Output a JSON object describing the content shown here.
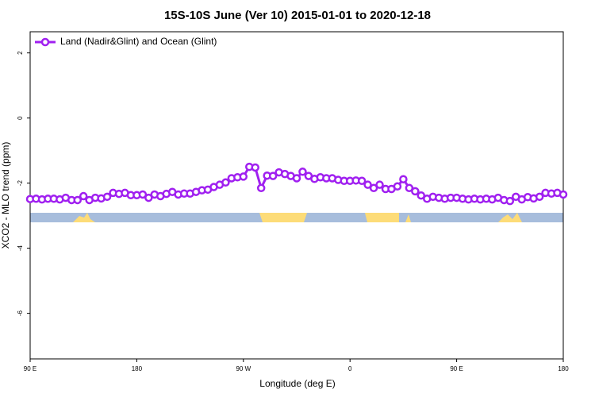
{
  "chart_data": {
    "type": "line",
    "title": "15S-10S June (Ver 10)   2015-01-01 to 2020-12-18",
    "x_label": "Longitude (deg E)",
    "y_label": "XCO2 - MLO trend (ppm)",
    "x": [
      90,
      95,
      100,
      105,
      110,
      115,
      120,
      125,
      130,
      135,
      140,
      145,
      150,
      155,
      160,
      165,
      170,
      175,
      180,
      185,
      190,
      195,
      200,
      205,
      210,
      215,
      220,
      225,
      230,
      235,
      240,
      245,
      250,
      255,
      260,
      265,
      270,
      275,
      280,
      285,
      290,
      295,
      300,
      305,
      310,
      315,
      320,
      325,
      330,
      335,
      340,
      345,
      350,
      355,
      360,
      365,
      370,
      375,
      380,
      385,
      390,
      395,
      400,
      405,
      410,
      415,
      420,
      425,
      430,
      435,
      440,
      445,
      450,
      455,
      460,
      465,
      470,
      475,
      480,
      485,
      490,
      495,
      500,
      505,
      510,
      515,
      520,
      525,
      530,
      535,
      540
    ],
    "series": [
      {
        "name": "Land (Nadir&Glint) and Ocean (Glint)",
        "color": "#a020f0",
        "values": [
          -2.49,
          -2.48,
          -2.5,
          -2.48,
          -2.48,
          -2.5,
          -2.45,
          -2.52,
          -2.52,
          -2.4,
          -2.52,
          -2.45,
          -2.47,
          -2.42,
          -2.3,
          -2.33,
          -2.3,
          -2.37,
          -2.37,
          -2.35,
          -2.45,
          -2.35,
          -2.4,
          -2.33,
          -2.27,
          -2.35,
          -2.32,
          -2.32,
          -2.27,
          -2.22,
          -2.2,
          -2.12,
          -2.05,
          -1.98,
          -1.85,
          -1.82,
          -1.8,
          -1.5,
          -1.52,
          -2.15,
          -1.77,
          -1.78,
          -1.67,
          -1.72,
          -1.78,
          -1.85,
          -1.65,
          -1.78,
          -1.87,
          -1.82,
          -1.85,
          -1.85,
          -1.9,
          -1.93,
          -1.93,
          -1.92,
          -1.93,
          -2.05,
          -2.15,
          -2.05,
          -2.18,
          -2.18,
          -2.1,
          -1.88,
          -2.15,
          -2.25,
          -2.38,
          -2.48,
          -2.42,
          -2.45,
          -2.48,
          -2.45,
          -2.45,
          -2.48,
          -2.5,
          -2.48,
          -2.5,
          -2.48,
          -2.5,
          -2.45,
          -2.52,
          -2.55,
          -2.42,
          -2.5,
          -2.43,
          -2.47,
          -2.42,
          -2.3,
          -2.32,
          -2.3,
          -2.35
        ]
      }
    ],
    "xlim": [
      90,
      540
    ],
    "xticks": [
      {
        "value": 90,
        "label": "90 E"
      },
      {
        "value": 180,
        "label": "180"
      },
      {
        "value": 270,
        "label": "90 W"
      },
      {
        "value": 360,
        "label": "0"
      },
      {
        "value": 450,
        "label": "90 E"
      },
      {
        "value": 540,
        "label": "180"
      }
    ],
    "ylim": [
      -7.4,
      2.65
    ],
    "yticks": [
      2,
      0,
      -2,
      -4,
      -6
    ],
    "legend": "top-left"
  }
}
